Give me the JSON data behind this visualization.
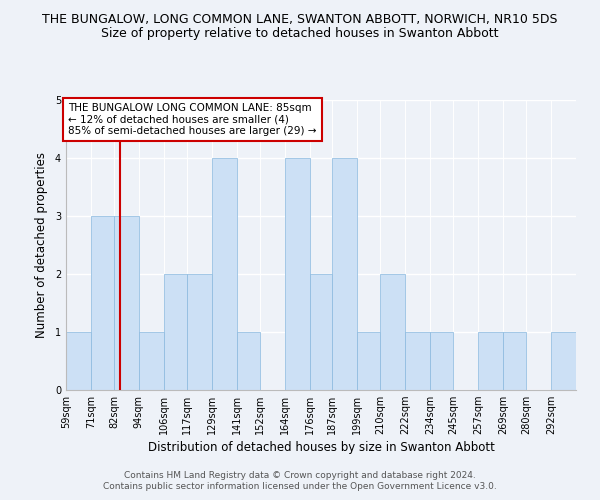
{
  "title": "THE BUNGALOW, LONG COMMON LANE, SWANTON ABBOTT, NORWICH, NR10 5DS",
  "subtitle": "Size of property relative to detached houses in Swanton Abbott",
  "xlabel": "Distribution of detached houses by size in Swanton Abbott",
  "ylabel": "Number of detached properties",
  "bin_labels": [
    "59sqm",
    "71sqm",
    "82sqm",
    "94sqm",
    "106sqm",
    "117sqm",
    "129sqm",
    "141sqm",
    "152sqm",
    "164sqm",
    "176sqm",
    "187sqm",
    "199sqm",
    "210sqm",
    "222sqm",
    "234sqm",
    "245sqm",
    "257sqm",
    "269sqm",
    "280sqm",
    "292sqm"
  ],
  "bin_edges": [
    59,
    71,
    82,
    94,
    106,
    117,
    129,
    141,
    152,
    164,
    176,
    187,
    199,
    210,
    222,
    234,
    245,
    257,
    269,
    280,
    292
  ],
  "bar_heights": [
    1,
    3,
    3,
    1,
    2,
    2,
    4,
    1,
    0,
    4,
    2,
    4,
    1,
    2,
    1,
    1,
    0,
    1,
    1,
    0,
    1
  ],
  "bar_color": "#cce0f5",
  "bar_edge_color": "#89b8de",
  "vline_x": 85,
  "vline_color": "#cc0000",
  "annotation_text": "THE BUNGALOW LONG COMMON LANE: 85sqm\n← 12% of detached houses are smaller (4)\n85% of semi-detached houses are larger (29) →",
  "annotation_box_color": "#ffffff",
  "annotation_border_color": "#cc0000",
  "ylim": [
    0,
    5
  ],
  "yticks": [
    0,
    1,
    2,
    3,
    4,
    5
  ],
  "background_color": "#eef2f8",
  "plot_bg_color": "#eef2f8",
  "footer_line1": "Contains HM Land Registry data © Crown copyright and database right 2024.",
  "footer_line2": "Contains public sector information licensed under the Open Government Licence v3.0.",
  "title_fontsize": 9,
  "subtitle_fontsize": 9,
  "axis_label_fontsize": 8.5,
  "tick_fontsize": 7,
  "annotation_fontsize": 7.5,
  "footer_fontsize": 6.5
}
